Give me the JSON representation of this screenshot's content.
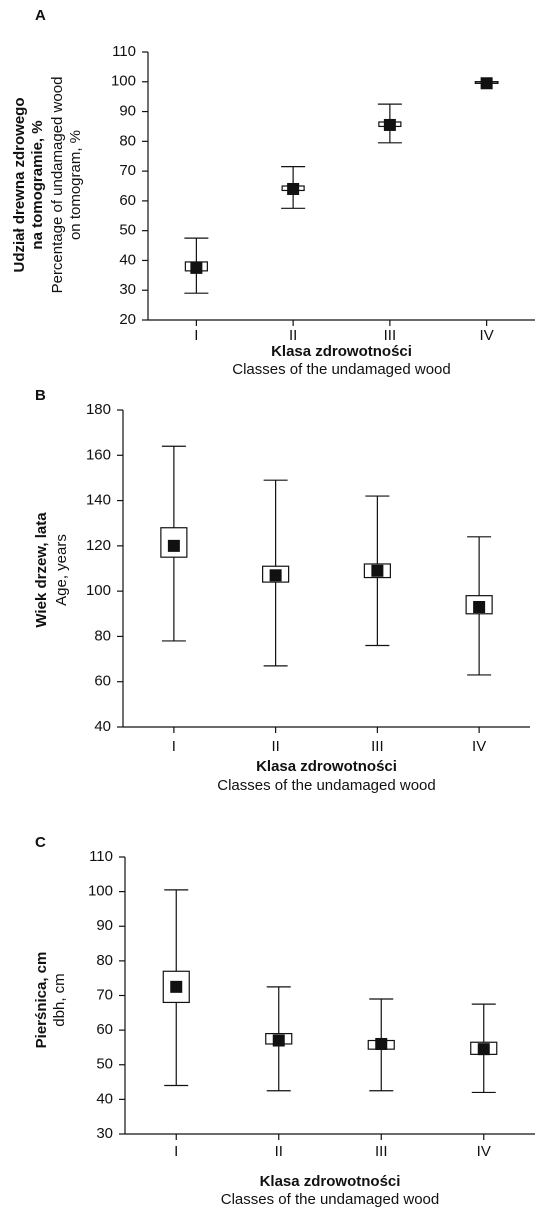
{
  "chart_data": [
    {
      "type": "box",
      "label": "A",
      "ylabel_bold": [
        "Udział drewna zdrowego",
        "na tomogramie, %"
      ],
      "ylabel": [
        "Percentage of undamaged wood",
        "on tomogram, %"
      ],
      "xlabel_bold": "Klasa zdrowotności",
      "xlabel": "Classes of the undamaged wood",
      "categories": [
        "I",
        "II",
        "III",
        "IV"
      ],
      "means": [
        37.5,
        64,
        85.5,
        99.5
      ],
      "box_low": [
        36.5,
        63.5,
        85,
        99.5
      ],
      "box_high": [
        39.5,
        65,
        86.5,
        100
      ],
      "whisker_low": [
        29,
        57.5,
        79.5,
        99.5
      ],
      "whisker_high": [
        47.5,
        71.5,
        92.5,
        100
      ],
      "ylim": [
        20,
        110
      ],
      "yticks": [
        20,
        30,
        40,
        50,
        60,
        70,
        80,
        90,
        100,
        110
      ]
    },
    {
      "type": "box",
      "label": "B",
      "ylabel_bold": [
        "Wiek drzew, lata"
      ],
      "ylabel": [
        "Age, years"
      ],
      "xlabel_bold": "Klasa zdrowotności",
      "xlabel": "Classes of the undamaged wood",
      "categories": [
        "I",
        "II",
        "III",
        "IV"
      ],
      "means": [
        120,
        107,
        109,
        93
      ],
      "box_low": [
        115,
        104,
        106,
        90
      ],
      "box_high": [
        128,
        111,
        112,
        98
      ],
      "whisker_low": [
        78,
        67,
        76,
        63
      ],
      "whisker_high": [
        164,
        149,
        142,
        124
      ],
      "ylim": [
        40,
        180
      ],
      "yticks": [
        40,
        60,
        80,
        100,
        120,
        140,
        160,
        180
      ]
    },
    {
      "type": "box",
      "label": "C",
      "ylabel_bold": [
        "Pierśnica, cm"
      ],
      "ylabel": [
        "dbh, cm"
      ],
      "xlabel_bold": "Klasa zdrowotności",
      "xlabel": "Classes of the undamaged wood",
      "categories": [
        "I",
        "II",
        "III",
        "IV"
      ],
      "means": [
        72.5,
        57,
        56,
        54.5
      ],
      "box_low": [
        68,
        56,
        54.5,
        53
      ],
      "box_high": [
        77,
        59,
        57,
        56.5
      ],
      "whisker_low": [
        44,
        42.5,
        42.5,
        42
      ],
      "whisker_high": [
        100.5,
        72.5,
        69,
        67.5
      ],
      "ylim": [
        30,
        110
      ],
      "yticks": [
        30,
        40,
        50,
        60,
        70,
        80,
        90,
        100,
        110
      ]
    }
  ]
}
